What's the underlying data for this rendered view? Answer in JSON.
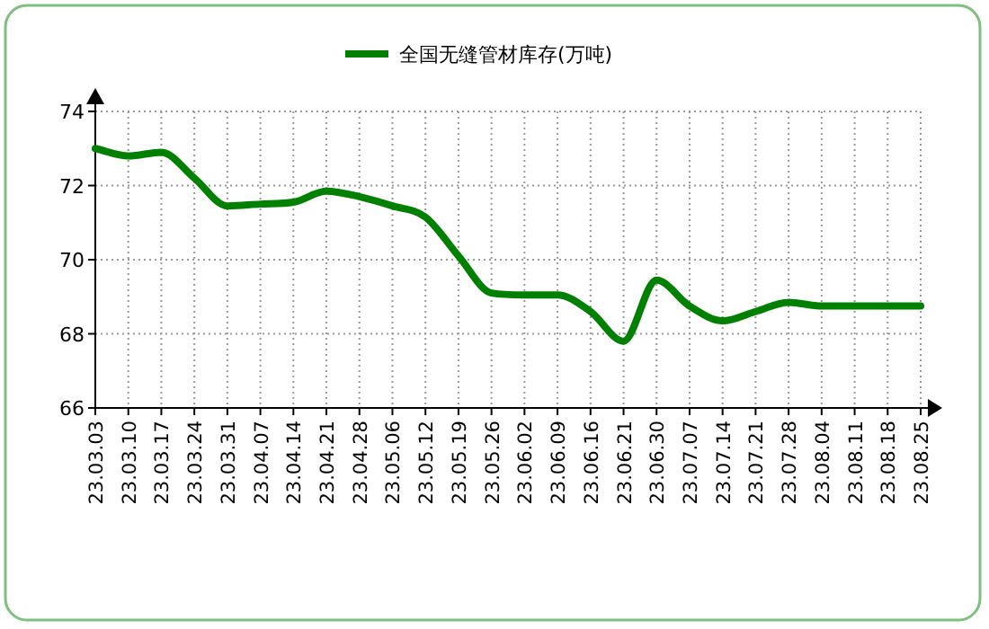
{
  "chart_data": {
    "type": "line",
    "categories": [
      "23.03.03",
      "23.03.10",
      "23.03.17",
      "23.03.24",
      "23.03.31",
      "23.04.07",
      "23.04.14",
      "23.04.21",
      "23.04.28",
      "23.05.06",
      "23.05.12",
      "23.05.19",
      "23.05.26",
      "23.06.02",
      "23.06.09",
      "23.06.16",
      "23.06.21",
      "23.06.30",
      "23.07.07",
      "23.07.14",
      "23.07.21",
      "23.07.28",
      "23.08.04",
      "23.08.11",
      "23.08.18",
      "23.08.25"
    ],
    "series": [
      {
        "name": "全国无缝管材库存(万吨)",
        "color": "#008000",
        "values": [
          73.0,
          72.8,
          72.9,
          72.2,
          71.45,
          71.5,
          71.55,
          71.85,
          71.7,
          71.45,
          71.15,
          70.1,
          69.1,
          69.05,
          69.05,
          68.6,
          67.8,
          69.45,
          68.75,
          68.35,
          68.6,
          68.85,
          68.75,
          68.75,
          68.75,
          68.75
        ]
      }
    ],
    "ylim": [
      66,
      74
    ],
    "yticks": [
      66,
      68,
      70,
      72,
      74
    ],
    "grid": true,
    "legend": "top",
    "marker": "none",
    "line_style": "solid"
  }
}
